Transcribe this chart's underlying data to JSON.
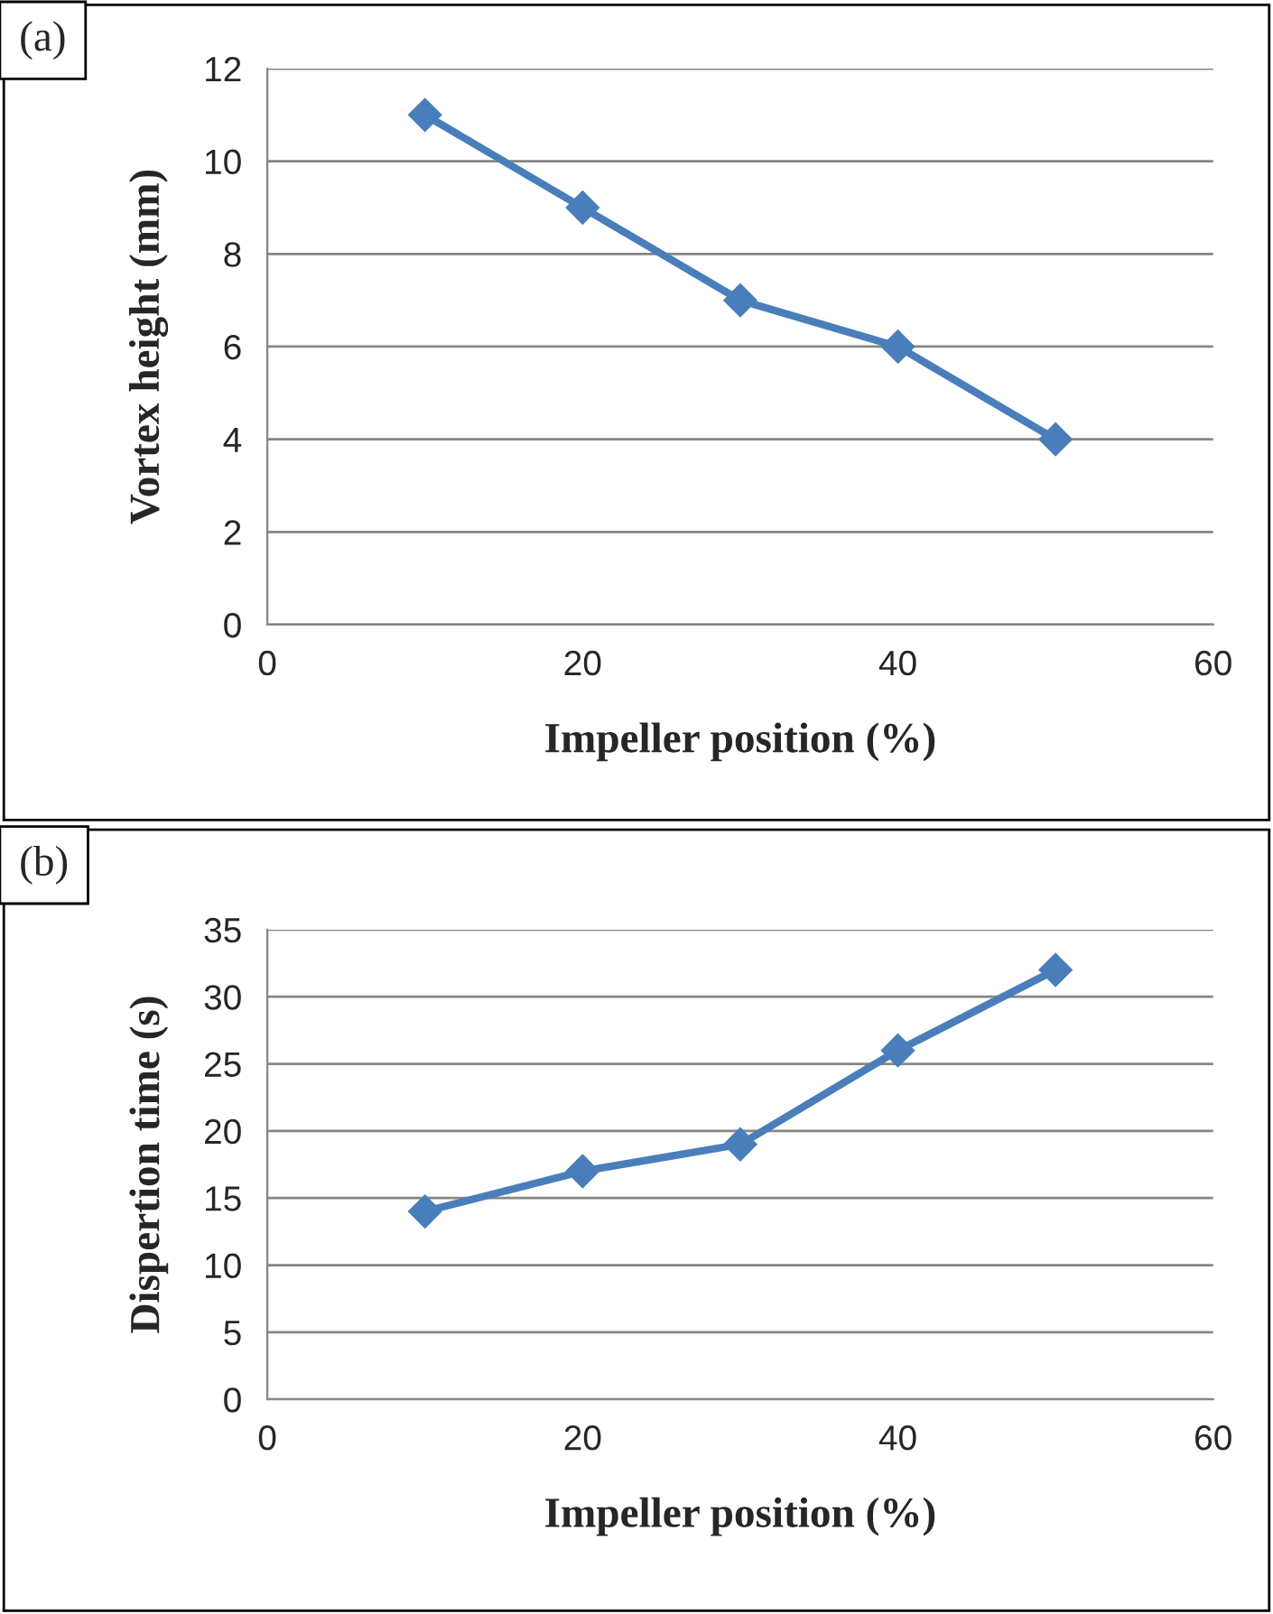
{
  "chart_data": [
    {
      "type": "line",
      "xlabel": "Impeller position (%)",
      "ylabel": "Vortex height (mm)",
      "annotations": [
        "(a)"
      ],
      "x": [
        10,
        20,
        30,
        40,
        50
      ],
      "series": [
        {
          "color": "#4a7ebb",
          "values": [
            11,
            9,
            7,
            6,
            4
          ]
        }
      ],
      "xlim": [
        0,
        60
      ],
      "xticks": [
        0,
        20,
        40,
        60
      ],
      "ylim": [
        0,
        12
      ],
      "yticks": [
        0,
        2,
        4,
        6,
        8,
        10,
        12
      ],
      "grid": "y",
      "marker": "diamond",
      "line_style": "solid"
    },
    {
      "type": "line",
      "xlabel": "Impeller position (%)",
      "ylabel": "Dispertion time (s)",
      "annotations": [
        "(b)"
      ],
      "x": [
        10,
        20,
        30,
        40,
        50
      ],
      "series": [
        {
          "color": "#4a7ebb",
          "values": [
            14,
            17,
            19,
            26,
            32
          ]
        }
      ],
      "xlim": [
        0,
        60
      ],
      "xticks": [
        0,
        20,
        40,
        60
      ],
      "ylim": [
        0,
        35
      ],
      "yticks": [
        0,
        5,
        10,
        15,
        20,
        25,
        30,
        35
      ],
      "grid": "y",
      "marker": "diamond",
      "line_style": "solid"
    }
  ]
}
